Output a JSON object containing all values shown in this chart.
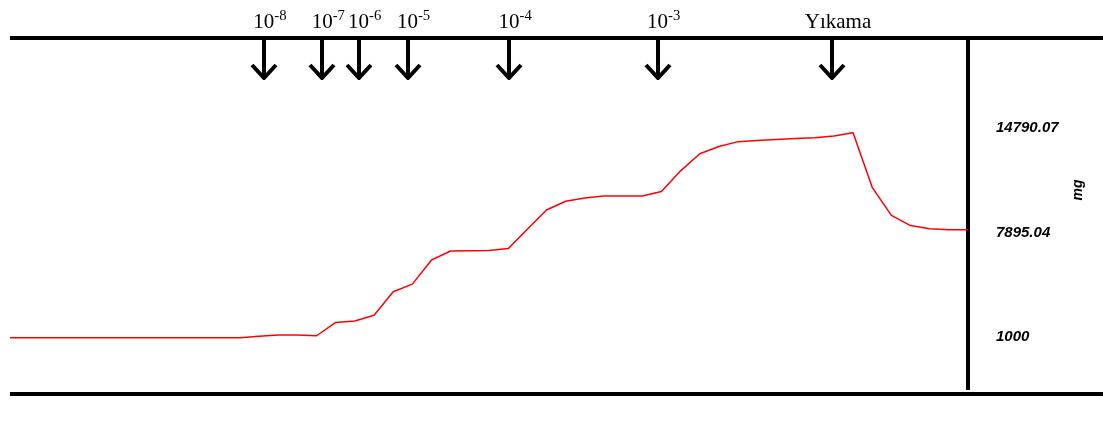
{
  "chart_data": {
    "type": "line",
    "ylabel": "mg",
    "categories": [
      null,
      null,
      null,
      null,
      null,
      null,
      null,
      null,
      null,
      null,
      null,
      null,
      null,
      null,
      null,
      null,
      null,
      null,
      null,
      null,
      null,
      null,
      null,
      null,
      null,
      null,
      null,
      null,
      null,
      null,
      null,
      null,
      null,
      null,
      null,
      null,
      null,
      null,
      null,
      null,
      null,
      null,
      null,
      null,
      null,
      null,
      null,
      null,
      null,
      null,
      null
    ],
    "series": [
      {
        "color": "#ff0000",
        "values": [
          940,
          940,
          940,
          940,
          940,
          940,
          940,
          940,
          940,
          940,
          940,
          940,
          940,
          1040,
          1120,
          1120,
          1070,
          1950,
          2050,
          2420,
          3980,
          4480,
          6080,
          6670,
          6690,
          6710,
          6830,
          8110,
          9380,
          9960,
          10180,
          10300,
          10300,
          10310,
          10600,
          11970,
          13100,
          13580,
          13900,
          13980,
          14040,
          14100,
          14150,
          14280,
          14480,
          10880,
          9030,
          8350,
          8140,
          8080,
          8080
        ]
      }
    ],
    "ylim": [
      -2450,
      20750
    ],
    "yticks": [
      1000,
      7895.04,
      14790.07
    ],
    "tick_labels": "y",
    "grid": false,
    "legend": false,
    "marker": "none",
    "line_style": "solid",
    "annotations": [
      "10$^{-8}$",
      "10$^{-7}$",
      "10$^{-6}$",
      "10$^{-5}$",
      "10$^{-4}$",
      "10$^{-3}$",
      "Yıkama"
    ]
  }
}
